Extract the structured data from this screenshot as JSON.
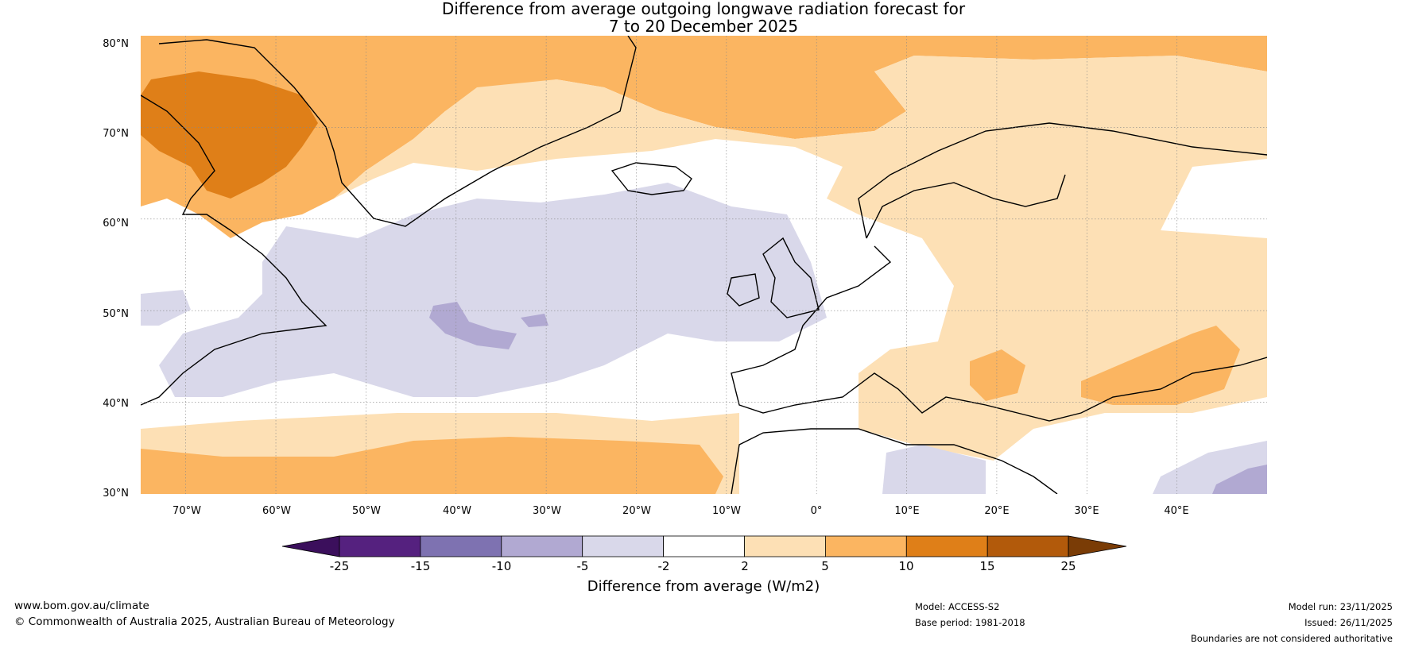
{
  "title": {
    "line1": "Difference from average outgoing longwave radiation forecast for",
    "line2": "7 to 20 December 2025"
  },
  "map": {
    "lat_labels": [
      "80°N",
      "70°N",
      "60°N",
      "50°N",
      "40°N",
      "30°N"
    ],
    "lon_labels": [
      "70°W",
      "60°W",
      "50°W",
      "40°W",
      "30°W",
      "20°W",
      "10°W",
      "0°",
      "10°E",
      "20°E",
      "30°E",
      "40°E"
    ],
    "extent": {
      "lon_min": -75,
      "lon_max": 50,
      "lat_min": 30,
      "lat_max": 80
    }
  },
  "colorbar": {
    "ticks": [
      "-25",
      "-15",
      "-10",
      "-5",
      "-2",
      "2",
      "5",
      "10",
      "15",
      "25"
    ],
    "colors": [
      "#3b0f5c",
      "#55217f",
      "#7e72b1",
      "#b1a9d2",
      "#d9d8ea",
      "#ffffff",
      "#fde0b5",
      "#fbb561",
      "#df7f18",
      "#b25a0b",
      "#7a3c06"
    ],
    "label": "Difference from average (W/m2)"
  },
  "palette": {
    "land_line": "#000000",
    "border_line": "#808080",
    "grid_line": "#888888"
  },
  "footer": {
    "website": "www.bom.gov.au/climate",
    "copyright": "© Commonwealth of Australia 2025, Australian Bureau of Meteorology",
    "model": "Model: ACCESS-S2",
    "base_period": "Base period: 1981-2018",
    "model_run": "Model run: 23/11/2025",
    "issued": "Issued: 26/11/2025",
    "disclaimer": "Boundaries are not considered authoritative"
  }
}
